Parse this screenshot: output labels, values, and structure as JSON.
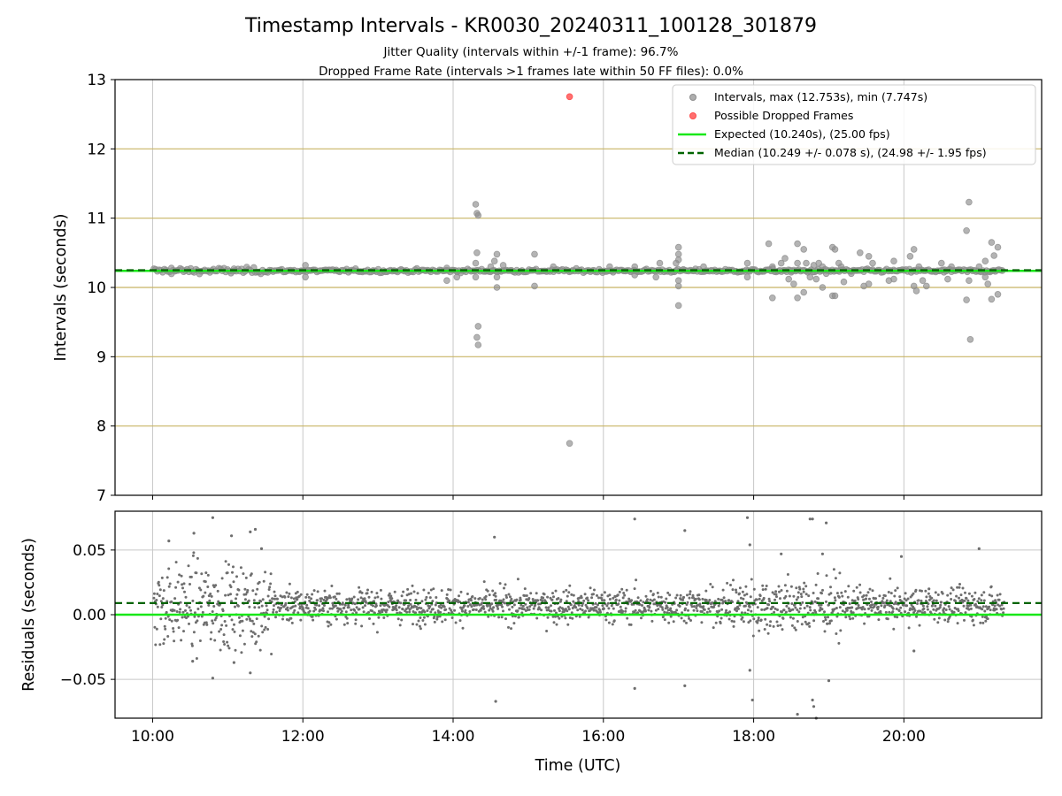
{
  "title": "Timestamp Intervals - KR0030_20240311_100128_301879",
  "subtitle_1": "Jitter Quality (intervals within +/-1 frame): 96.7%",
  "subtitle_2": "Dropped Frame Rate (intervals >1 frames late within 50 FF files): 0.0%",
  "colors": {
    "intervals": "#8c8c8c",
    "dropped": "#ff4c4c",
    "expected": "#18e818",
    "median": "#006400",
    "frame_grid": "#c8b464",
    "grid": "#c8c8c8",
    "residuals": "#6e6e6e"
  },
  "chart_data": [
    {
      "type": "scatter",
      "panel": "top",
      "ylabel": "Intervals (seconds)",
      "ylim": [
        7,
        13
      ],
      "yticks": [
        "7",
        "8",
        "9",
        "10",
        "11",
        "12",
        "13"
      ],
      "xlim": [
        "09:30",
        "21:50"
      ],
      "grid": true,
      "legend_position": "top-right",
      "legend": [
        "Intervals, max (12.753s), min (7.747s)",
        "Possible Dropped Frames",
        "Expected (10.240s), (25.00 fps)",
        "Median (10.249 +/- 0.078 s), (24.98 +/- 1.95 fps)"
      ],
      "expected_interval": 10.24,
      "median_interval": 10.249,
      "frame_gridlines": [
        8.0,
        9.0,
        10.0,
        10.24,
        11.0,
        12.0
      ],
      "time_range": [
        "10:01",
        "21:20"
      ],
      "series": [
        {
          "name": "Intervals, max (12.753s), min (7.747s)",
          "baseline": 10.24,
          "outliers": [
            {
              "x": "10:15",
              "y": 10.28
            },
            {
              "x": "11:05",
              "y": 10.27
            },
            {
              "x": "12:02",
              "y": 10.32
            },
            {
              "x": "12:02",
              "y": 10.15
            },
            {
              "x": "13:55",
              "y": 10.28
            },
            {
              "x": "13:55",
              "y": 10.1
            },
            {
              "x": "14:03",
              "y": 10.15
            },
            {
              "x": "14:18",
              "y": 11.2
            },
            {
              "x": "14:19",
              "y": 11.07
            },
            {
              "x": "14:20",
              "y": 11.04
            },
            {
              "x": "14:19",
              "y": 10.5
            },
            {
              "x": "14:18",
              "y": 10.35
            },
            {
              "x": "14:18",
              "y": 10.15
            },
            {
              "x": "14:20",
              "y": 9.44
            },
            {
              "x": "14:19",
              "y": 9.28
            },
            {
              "x": "14:20",
              "y": 9.17
            },
            {
              "x": "14:30",
              "y": 10.3
            },
            {
              "x": "14:33",
              "y": 10.38
            },
            {
              "x": "14:35",
              "y": 10.48
            },
            {
              "x": "14:35",
              "y": 10.15
            },
            {
              "x": "14:35",
              "y": 10.0
            },
            {
              "x": "14:40",
              "y": 10.32
            },
            {
              "x": "15:05",
              "y": 10.48
            },
            {
              "x": "15:05",
              "y": 10.02
            },
            {
              "x": "15:20",
              "y": 10.3
            },
            {
              "x": "15:33",
              "y": 7.75
            },
            {
              "x": "16:05",
              "y": 10.3
            },
            {
              "x": "16:25",
              "y": 10.3
            },
            {
              "x": "16:25",
              "y": 10.18
            },
            {
              "x": "16:45",
              "y": 10.35
            },
            {
              "x": "16:42",
              "y": 10.15
            },
            {
              "x": "17:00",
              "y": 10.58
            },
            {
              "x": "17:00",
              "y": 10.48
            },
            {
              "x": "17:00",
              "y": 10.4
            },
            {
              "x": "16:58",
              "y": 10.35
            },
            {
              "x": "17:00",
              "y": 10.1
            },
            {
              "x": "17:00",
              "y": 10.02
            },
            {
              "x": "17:00",
              "y": 9.74
            },
            {
              "x": "17:20",
              "y": 10.3
            },
            {
              "x": "17:55",
              "y": 10.35
            },
            {
              "x": "17:55",
              "y": 10.15
            },
            {
              "x": "18:12",
              "y": 10.63
            },
            {
              "x": "18:15",
              "y": 10.3
            },
            {
              "x": "18:15",
              "y": 9.85
            },
            {
              "x": "18:22",
              "y": 10.35
            },
            {
              "x": "18:25",
              "y": 10.42
            },
            {
              "x": "18:28",
              "y": 10.12
            },
            {
              "x": "18:30",
              "y": 10.22
            },
            {
              "x": "18:32",
              "y": 10.05
            },
            {
              "x": "18:35",
              "y": 10.63
            },
            {
              "x": "18:35",
              "y": 10.35
            },
            {
              "x": "18:35",
              "y": 9.85
            },
            {
              "x": "18:40",
              "y": 10.55
            },
            {
              "x": "18:40",
              "y": 9.93
            },
            {
              "x": "18:42",
              "y": 10.35
            },
            {
              "x": "18:45",
              "y": 10.15
            },
            {
              "x": "18:48",
              "y": 10.32
            },
            {
              "x": "18:50",
              "y": 10.12
            },
            {
              "x": "18:52",
              "y": 10.35
            },
            {
              "x": "18:55",
              "y": 10.3
            },
            {
              "x": "18:55",
              "y": 10.0
            },
            {
              "x": "18:58",
              "y": 10.2
            },
            {
              "x": "19:03",
              "y": 10.58
            },
            {
              "x": "19:05",
              "y": 10.55
            },
            {
              "x": "19:03",
              "y": 9.88
            },
            {
              "x": "19:05",
              "y": 9.88
            },
            {
              "x": "19:08",
              "y": 10.35
            },
            {
              "x": "19:10",
              "y": 10.3
            },
            {
              "x": "19:12",
              "y": 10.08
            },
            {
              "x": "19:18",
              "y": 10.2
            },
            {
              "x": "19:25",
              "y": 10.5
            },
            {
              "x": "19:28",
              "y": 10.02
            },
            {
              "x": "19:32",
              "y": 10.45
            },
            {
              "x": "19:32",
              "y": 10.05
            },
            {
              "x": "19:35",
              "y": 10.35
            },
            {
              "x": "19:48",
              "y": 10.1
            },
            {
              "x": "19:52",
              "y": 10.38
            },
            {
              "x": "19:52",
              "y": 10.12
            },
            {
              "x": "20:05",
              "y": 10.45
            },
            {
              "x": "20:08",
              "y": 10.55
            },
            {
              "x": "20:08",
              "y": 10.02
            },
            {
              "x": "20:10",
              "y": 9.95
            },
            {
              "x": "20:12",
              "y": 10.3
            },
            {
              "x": "20:15",
              "y": 10.1
            },
            {
              "x": "20:18",
              "y": 10.02
            },
            {
              "x": "20:30",
              "y": 10.35
            },
            {
              "x": "20:32",
              "y": 10.22
            },
            {
              "x": "20:35",
              "y": 10.12
            },
            {
              "x": "20:38",
              "y": 10.3
            },
            {
              "x": "20:50",
              "y": 10.82
            },
            {
              "x": "20:52",
              "y": 11.23
            },
            {
              "x": "20:52",
              "y": 10.1
            },
            {
              "x": "20:50",
              "y": 9.82
            },
            {
              "x": "20:53",
              "y": 9.25
            },
            {
              "x": "21:00",
              "y": 10.3
            },
            {
              "x": "21:05",
              "y": 10.38
            },
            {
              "x": "21:05",
              "y": 10.15
            },
            {
              "x": "21:07",
              "y": 10.05
            },
            {
              "x": "21:10",
              "y": 10.65
            },
            {
              "x": "21:12",
              "y": 10.46
            },
            {
              "x": "21:10",
              "y": 9.83
            },
            {
              "x": "21:15",
              "y": 10.58
            },
            {
              "x": "21:15",
              "y": 9.9
            }
          ]
        },
        {
          "name": "Possible Dropped Frames",
          "points": [
            {
              "x": "15:33",
              "y": 12.753
            }
          ]
        }
      ]
    },
    {
      "type": "scatter",
      "panel": "bottom",
      "ylabel": "Residuals (seconds)",
      "xlabel": "Time (UTC)",
      "ylim": [
        -0.08,
        0.08
      ],
      "yticks": [
        "−0.05",
        "0.00",
        "0.05"
      ],
      "xticks": [
        "10:00",
        "12:00",
        "14:00",
        "16:00",
        "18:00",
        "20:00"
      ],
      "grid": true,
      "expected_residual": 0.0,
      "median_residual": 0.009,
      "series": [
        {
          "name": "Residuals",
          "cluster_center": 0.007,
          "outliers": [
            {
              "x": "10:13",
              "y": 0.057
            },
            {
              "x": "10:33",
              "y": 0.063
            },
            {
              "x": "10:48",
              "y": 0.075
            },
            {
              "x": "11:03",
              "y": 0.061
            },
            {
              "x": "11:18",
              "y": 0.064
            },
            {
              "x": "11:22",
              "y": 0.066
            },
            {
              "x": "11:27",
              "y": 0.051
            },
            {
              "x": "10:48",
              "y": -0.049
            },
            {
              "x": "11:18",
              "y": -0.045
            },
            {
              "x": "10:32",
              "y": -0.036
            },
            {
              "x": "11:05",
              "y": -0.037
            },
            {
              "x": "14:33",
              "y": 0.06
            },
            {
              "x": "14:34",
              "y": -0.067
            },
            {
              "x": "16:25",
              "y": 0.074
            },
            {
              "x": "16:25",
              "y": -0.057
            },
            {
              "x": "17:05",
              "y": 0.065
            },
            {
              "x": "17:05",
              "y": -0.055
            },
            {
              "x": "17:55",
              "y": 0.075
            },
            {
              "x": "17:57",
              "y": 0.054
            },
            {
              "x": "17:57",
              "y": -0.043
            },
            {
              "x": "17:59",
              "y": -0.066
            },
            {
              "x": "18:22",
              "y": 0.047
            },
            {
              "x": "18:35",
              "y": -0.077
            },
            {
              "x": "18:45",
              "y": 0.074
            },
            {
              "x": "18:47",
              "y": 0.074
            },
            {
              "x": "18:47",
              "y": -0.066
            },
            {
              "x": "18:48",
              "y": -0.071
            },
            {
              "x": "18:50",
              "y": -0.08
            },
            {
              "x": "18:55",
              "y": 0.047
            },
            {
              "x": "18:58",
              "y": 0.071
            },
            {
              "x": "19:00",
              "y": -0.051
            },
            {
              "x": "19:58",
              "y": 0.045
            },
            {
              "x": "20:08",
              "y": -0.028
            },
            {
              "x": "21:00",
              "y": 0.051
            },
            {
              "x": "20:20",
              "y": 0.02
            }
          ]
        }
      ]
    }
  ]
}
